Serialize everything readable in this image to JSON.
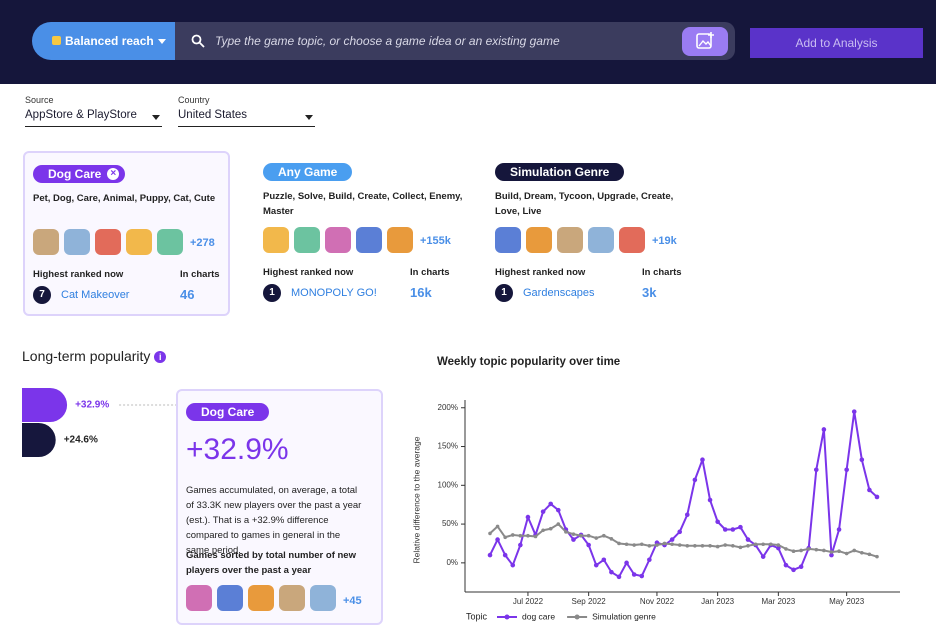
{
  "header": {
    "mode": "Balanced reach",
    "search_placeholder": "Type the game topic, or choose a game idea or an existing game",
    "button": "Add to Analysis"
  },
  "filters": [
    {
      "label": "Source",
      "value": "AppStore & PlayStore"
    },
    {
      "label": "Country",
      "value": "United States"
    }
  ],
  "cards": [
    {
      "tag": "Dog Care",
      "keywords": "Pet, Dog, Care, Animal, Puppy, Cat, Cute",
      "more": "+278",
      "highest_label": "Highest ranked now",
      "rank": "7",
      "top_game": "Cat Makeover",
      "charts_label": "In charts",
      "charts": "46"
    },
    {
      "tag": "Any Game",
      "keywords": "Puzzle, Solve, Build, Create, Collect, Enemy, Master",
      "more": "+155k",
      "highest_label": "Highest ranked now",
      "rank": "1",
      "top_game": "MONOPOLY GO!",
      "charts_label": "In charts",
      "charts": "16k"
    },
    {
      "tag": "Simulation Genre",
      "keywords": "Build, Dream, Tycoon, Upgrade, Create, Love, Live",
      "more": "+19k",
      "highest_label": "Highest ranked now",
      "rank": "1",
      "top_game": "Gardenscapes",
      "charts_label": "In charts",
      "charts": "3k"
    }
  ],
  "popularity": {
    "title": "Long-term popularity",
    "bars": {
      "values": [
        32.9,
        24.6
      ],
      "value_labels": [
        "+32.9%",
        "+24.6%"
      ],
      "colors": [
        "#7b35ea",
        "#16173d"
      ]
    },
    "detail": {
      "tag": "Dog Care",
      "headline": "+32.9%",
      "text": "Games accumulated, on average, a total of 33.3K new players over the past a year (est.). That is a +32.9% difference compared to games in general in the same period.",
      "subtitle": "Games sorted by total number of new players over the past a year",
      "more": "+45"
    }
  },
  "chart_data": {
    "type": "line",
    "title": "Weekly topic popularity over time",
    "y_label": "Relative difference to the average",
    "legend_title": "Topic",
    "categories": [
      null,
      null,
      null,
      null,
      null,
      "Jul 2022",
      null,
      null,
      null,
      null,
      null,
      null,
      null,
      "Sep 2022",
      null,
      null,
      null,
      null,
      null,
      null,
      null,
      null,
      "Nov 2022",
      null,
      null,
      null,
      null,
      null,
      null,
      null,
      "Jan 2023",
      null,
      null,
      null,
      null,
      null,
      null,
      null,
      "Mar 2023",
      null,
      null,
      null,
      null,
      null,
      null,
      null,
      null,
      "May 2023",
      null,
      null,
      null,
      null
    ],
    "series": [
      {
        "name": "dog care",
        "color": "#7b35ea",
        "values": [
          10,
          30,
          10,
          -3,
          23,
          59,
          36,
          66,
          76,
          68,
          43,
          30,
          36,
          23,
          -3,
          4,
          -12,
          -18,
          0,
          -15,
          -17,
          4,
          26,
          23,
          30,
          40,
          62,
          107,
          133,
          81,
          53,
          43,
          43,
          46,
          30,
          23,
          8,
          23,
          19,
          -3,
          -9,
          -5,
          19,
          120,
          172,
          10,
          43,
          120,
          195,
          133,
          94,
          85
        ]
      },
      {
        "name": "Simulation genre",
        "color": "#8a8a8a",
        "values": [
          38,
          47,
          33,
          36,
          35,
          35,
          34,
          42,
          44,
          50,
          40,
          37,
          35,
          35,
          32,
          35,
          31,
          25,
          24,
          23,
          24,
          22,
          23,
          25,
          24,
          23,
          22,
          22,
          22,
          22,
          21,
          23,
          22,
          20,
          22,
          24,
          24,
          24,
          23,
          18,
          15,
          16,
          18,
          17,
          16,
          14,
          15,
          12,
          16,
          13,
          11,
          8
        ]
      }
    ],
    "ylim": [
      -35,
      210
    ],
    "yticks": [
      {
        "value": 0,
        "label": "0%"
      },
      {
        "value": 50,
        "label": "50%"
      },
      {
        "value": 100,
        "label": "100%"
      },
      {
        "value": 150,
        "label": "150%"
      },
      {
        "value": 200,
        "label": "200%"
      }
    ],
    "grid": false
  }
}
